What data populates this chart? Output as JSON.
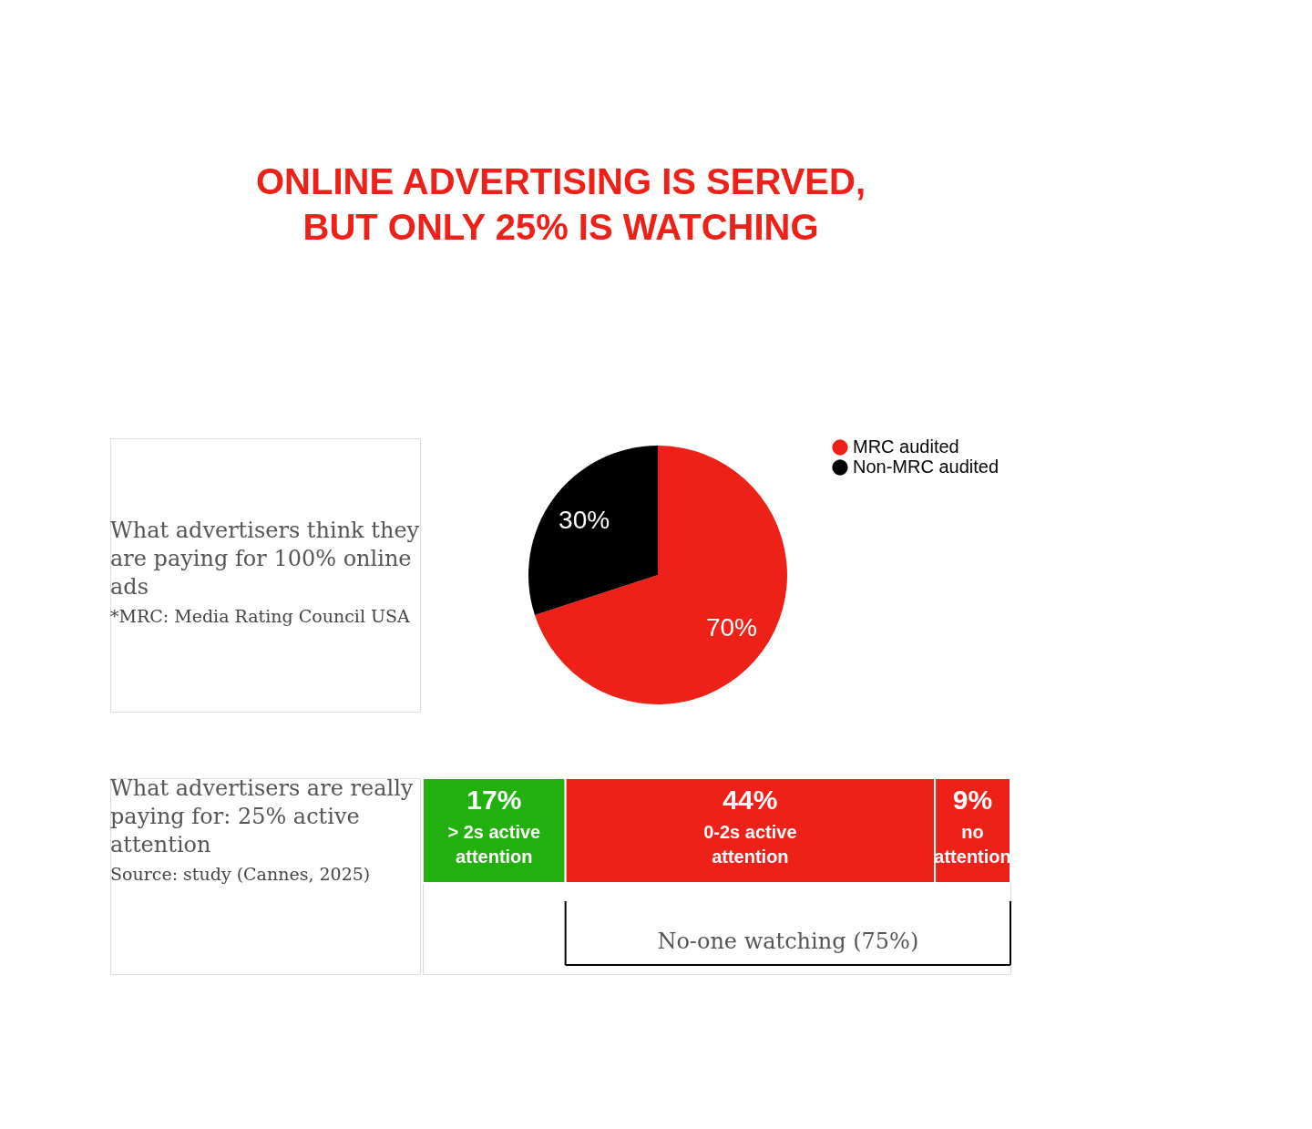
{
  "chart_data": [
    {
      "type": "pie",
      "title": "ONLINE ADVERTISING IS SERVED, BUT ONLY 25% IS WATCHING",
      "categories": [
        "MRC audited",
        "Non-MRC audited"
      ],
      "values": [
        70,
        30
      ],
      "colors": [
        "#ee2119",
        "#000000"
      ],
      "value_labels": [
        "70%",
        "30%"
      ],
      "legend": "right",
      "annotations": [
        "What advertisers think they are paying for 100% online ads",
        "*MRC: Media Rating Council USA"
      ]
    },
    {
      "type": "bar",
      "orientation": "horizontal",
      "stacked": true,
      "categories": [
        null
      ],
      "series": [
        {
          "name": "> 2s active attention",
          "color": "#22b00f",
          "values": [
            17
          ],
          "value_labels": [
            "17%"
          ]
        },
        {
          "name": "0-2s active attention",
          "color": "#ee2119",
          "values": [
            44
          ],
          "value_labels": [
            "44%"
          ]
        },
        {
          "name": "no attention",
          "color": "#ee2119",
          "values": [
            9
          ],
          "value_labels": [
            "9%"
          ]
        }
      ],
      "annotations": [
        "No-one watching (75%)",
        "What advertisers are really paying for: 25% active attention",
        "Source: study (Cannes, 2025)"
      ]
    }
  ]
}
